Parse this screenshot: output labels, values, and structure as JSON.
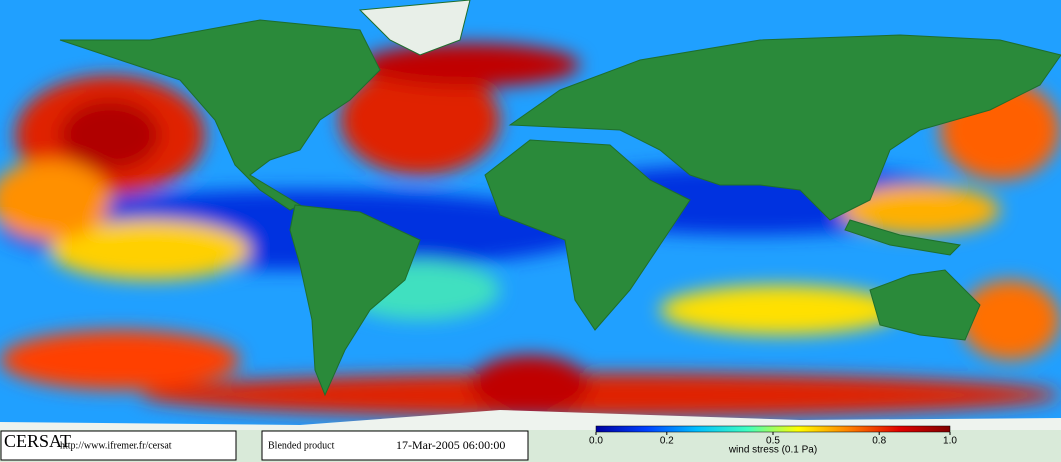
{
  "footer": {
    "logo": "CERSAT",
    "url": "http://www.ifremer.fr/cersat",
    "product": "Blended product",
    "date": "17-Mar-2005 06:00:00"
  },
  "colorbar": {
    "label": "wind stress (0.1 Pa)",
    "lim": [
      0,
      1
    ],
    "ticks": [
      {
        "value": 0,
        "label": "0.0"
      },
      {
        "value": 0.2,
        "label": "0.2"
      },
      {
        "value": 0.5,
        "label": "0.5"
      },
      {
        "value": 0.8,
        "label": "0.8"
      },
      {
        "value": 1,
        "label": "1.0"
      }
    ],
    "colors": [
      "#0000a0",
      "#0040ff",
      "#00c0ff",
      "#40ffc0",
      "#ffff00",
      "#ff8000",
      "#e00000",
      "#800000"
    ]
  }
}
